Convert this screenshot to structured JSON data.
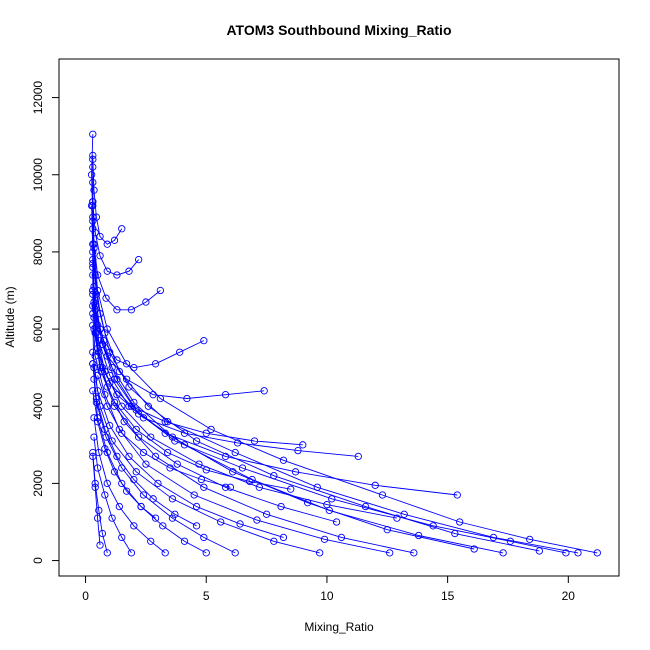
{
  "chart_data": {
    "type": "line",
    "title": "ATOM3 Southbound Mixing_Ratio",
    "xlabel": "Mixing_Ratio",
    "ylabel": "Altitude (m)",
    "xlim": [
      -1.1,
      22.1
    ],
    "ylim": [
      -400,
      13000
    ],
    "x_ticks": [
      0,
      5,
      10,
      15,
      20
    ],
    "y_ticks": [
      0,
      2000,
      4000,
      6000,
      8000,
      10000,
      12000
    ],
    "grid": false,
    "legend": "none",
    "series_color": "#0000ff",
    "marker": "open-circle",
    "series": [
      {
        "x": [
          19.9,
          17.6,
          14.4,
          10.2,
          6.5,
          3.7,
          2.1,
          1.3,
          0.7,
          0.4,
          0.3,
          0.3,
          0.25,
          0.3
        ],
        "y": [
          200,
          500,
          900,
          1600,
          2400,
          3100,
          3900,
          4700,
          5600,
          6600,
          7600,
          8800,
          10000,
          11050
        ]
      },
      {
        "x": [
          21.2,
          18.4,
          15.5,
          12.3,
          8.2,
          5.2,
          3.1,
          1.7,
          0.9,
          0.5,
          0.35,
          0.3,
          0.3
        ],
        "y": [
          200,
          550,
          1000,
          1700,
          2600,
          3400,
          4200,
          5100,
          6000,
          7000,
          8100,
          9300,
          10500
        ]
      },
      {
        "x": [
          20.4,
          16.9,
          13.2,
          9.6,
          6.2,
          3.4,
          1.8,
          1.0,
          0.6,
          0.4,
          0.3,
          0.3
        ],
        "y": [
          200,
          600,
          1200,
          1900,
          2800,
          3600,
          4500,
          5400,
          6400,
          7400,
          8600,
          9800
        ]
      },
      {
        "x": [
          18.8,
          15.3,
          11.6,
          7.8,
          4.6,
          2.6,
          1.4,
          0.8,
          0.45,
          0.3,
          0.25
        ],
        "y": [
          250,
          700,
          1400,
          2200,
          3100,
          4000,
          4900,
          5900,
          6900,
          8000,
          9200
        ]
      },
      {
        "x": [
          17.3,
          13.8,
          10.1,
          6.9,
          4.1,
          2.2,
          1.2,
          0.7,
          0.4,
          0.3,
          0.3
        ],
        "y": [
          200,
          650,
          1300,
          2100,
          3000,
          3800,
          4700,
          5600,
          6600,
          7700,
          8900
        ]
      },
      {
        "x": [
          16.1,
          12.5,
          9.2,
          6.1,
          3.6,
          2.0,
          1.1,
          0.6,
          0.35,
          0.3
        ],
        "y": [
          300,
          800,
          1500,
          2300,
          3200,
          4100,
          5000,
          6000,
          7100,
          8200
        ]
      },
      {
        "x": [
          15.4,
          12.0,
          8.7,
          5.8,
          3.3,
          1.8,
          1.0,
          0.55,
          0.35
        ],
        "y": [
          1700,
          1950,
          2300,
          2700,
          3300,
          4000,
          4800,
          5700,
          6700
        ]
      },
      {
        "x": [
          13.6,
          10.6,
          7.5,
          4.9,
          2.9,
          1.6,
          0.9,
          0.5,
          0.3,
          0.3
        ],
        "y": [
          200,
          600,
          1200,
          1900,
          2700,
          3600,
          4500,
          5500,
          6600,
          7800
        ]
      },
      {
        "x": [
          12.9,
          10.0,
          7.2,
          4.7,
          2.7,
          1.5,
          0.8,
          0.45,
          0.3
        ],
        "y": [
          1100,
          1450,
          1900,
          2500,
          3200,
          4000,
          4900,
          5900,
          7000
        ]
      },
      {
        "x": [
          12.6,
          9.9,
          7.1,
          4.5,
          2.5,
          1.4,
          0.8,
          0.4,
          0.3
        ],
        "y": [
          200,
          550,
          1050,
          1700,
          2500,
          3400,
          4300,
          5300,
          6400
        ]
      },
      {
        "x": [
          11.3,
          8.8,
          6.3,
          4.1,
          2.4,
          1.3,
          0.7,
          0.4,
          0.3
        ],
        "y": [
          2700,
          2850,
          3050,
          3300,
          3700,
          4300,
          5000,
          5900,
          6900
        ]
      },
      {
        "x": [
          10.4,
          8.1,
          5.8,
          3.8,
          2.2,
          1.2,
          0.65,
          0.4
        ],
        "y": [
          1000,
          1400,
          1900,
          2500,
          3200,
          4000,
          4900,
          5900
        ]
      },
      {
        "x": [
          9.7,
          7.8,
          5.6,
          3.6,
          2.1,
          1.1,
          0.6,
          0.35,
          0.3
        ],
        "y": [
          200,
          500,
          1000,
          1600,
          2300,
          3100,
          4000,
          5000,
          6100
        ]
      },
      {
        "x": [
          9.0,
          7.0,
          5.0,
          3.3,
          1.9,
          1.0,
          0.55,
          0.35
        ],
        "y": [
          3000,
          3100,
          3300,
          3600,
          4000,
          4600,
          5400,
          6300
        ]
      },
      {
        "x": [
          8.2,
          6.4,
          4.6,
          3.0,
          1.8,
          1.0,
          0.5,
          0.3
        ],
        "y": [
          600,
          950,
          1400,
          2000,
          2700,
          3500,
          4400,
          5400
        ]
      },
      {
        "x": [
          7.4,
          5.8,
          4.2,
          2.8,
          1.7,
          0.9,
          0.5,
          0.3
        ],
        "y": [
          4400,
          4300,
          4200,
          4300,
          4700,
          5300,
          6100,
          7000
        ]
      },
      {
        "x": [
          6.2,
          4.9,
          3.6,
          2.4,
          1.5,
          0.85,
          0.45,
          0.3
        ],
        "y": [
          200,
          600,
          1100,
          1700,
          2400,
          3200,
          4100,
          5100
        ]
      },
      {
        "x": [
          4.9,
          3.9,
          2.9,
          2.0,
          1.3,
          0.75,
          0.4,
          0.3
        ],
        "y": [
          5700,
          5400,
          5100,
          5000,
          5200,
          5700,
          6500,
          7400
        ]
      },
      {
        "x": [
          3.1,
          2.5,
          1.9,
          1.3,
          0.85,
          0.5,
          0.35,
          0.3
        ],
        "y": [
          7000,
          6700,
          6500,
          6500,
          6800,
          7400,
          8200,
          9200
        ]
      },
      {
        "x": [
          2.2,
          1.8,
          1.3,
          0.9,
          0.6,
          0.4,
          0.3,
          0.3
        ],
        "y": [
          7800,
          7500,
          7400,
          7500,
          7900,
          8500,
          9300,
          10200
        ]
      },
      {
        "x": [
          1.5,
          1.2,
          0.9,
          0.6,
          0.45,
          0.35,
          0.3
        ],
        "y": [
          8600,
          8300,
          8200,
          8400,
          8900,
          9600,
          10400
        ]
      },
      {
        "x": [
          5.0,
          4.1,
          3.2,
          2.3,
          1.5,
          0.9,
          0.5,
          0.35
        ],
        "y": [
          200,
          500,
          900,
          1400,
          2000,
          2800,
          3700,
          4700
        ]
      },
      {
        "x": [
          4.6,
          3.7,
          2.8,
          2.0,
          1.3,
          0.8,
          0.45,
          0.3
        ],
        "y": [
          900,
          1200,
          1600,
          2100,
          2700,
          3400,
          4200,
          5100
        ]
      },
      {
        "x": [
          3.3,
          2.7,
          2.0,
          1.4,
          0.9,
          0.55,
          0.35
        ],
        "y": [
          200,
          500,
          900,
          1400,
          2000,
          2800,
          3700
        ]
      },
      {
        "x": [
          2.9,
          2.3,
          1.7,
          1.2,
          0.8,
          0.5,
          0.3
        ],
        "y": [
          1100,
          1400,
          1800,
          2300,
          2900,
          3600,
          4400
        ]
      },
      {
        "x": [
          1.9,
          1.5,
          1.1,
          0.8,
          0.5,
          0.35
        ],
        "y": [
          200,
          600,
          1100,
          1700,
          2400,
          3200
        ]
      },
      {
        "x": [
          0.9,
          0.7,
          0.55,
          0.4,
          0.3
        ],
        "y": [
          200,
          700,
          1300,
          2000,
          2800
        ]
      },
      {
        "x": [
          0.6,
          0.5,
          0.4,
          0.3
        ],
        "y": [
          400,
          1100,
          1900,
          2700
        ]
      },
      {
        "x": [
          6.0,
          4.8,
          3.5,
          2.4,
          1.5,
          0.9,
          0.5
        ],
        "y": [
          1900,
          2100,
          2400,
          2800,
          3300,
          4000,
          4800
        ]
      },
      {
        "x": [
          8.5,
          6.8,
          5.0,
          3.4,
          2.1,
          1.2,
          0.6,
          0.35
        ],
        "y": [
          1850,
          2050,
          2350,
          2800,
          3400,
          4100,
          5000,
          6000
        ]
      }
    ]
  }
}
